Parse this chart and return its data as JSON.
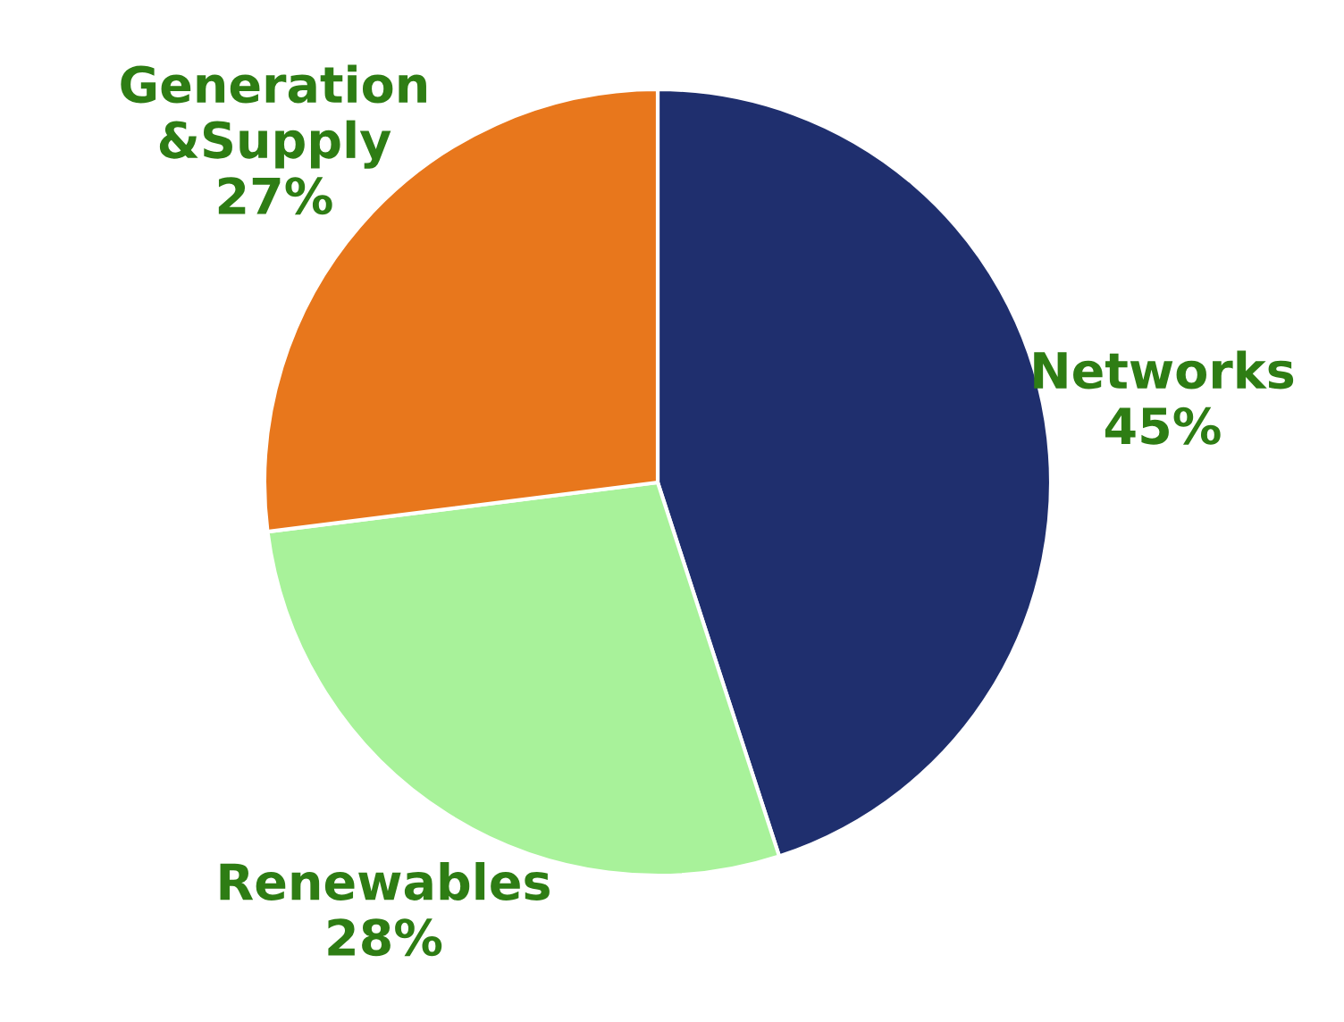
{
  "chart_data": {
    "type": "pie",
    "categories": [
      "Networks",
      "Renewables",
      "Generation\n&Supply"
    ],
    "values": [
      45,
      28,
      27
    ],
    "colors": [
      "#1f2f6e",
      "#a8f29a",
      "#e8771c"
    ],
    "value_labels": [
      "45%",
      "28%",
      "27%"
    ],
    "legend": false
  }
}
